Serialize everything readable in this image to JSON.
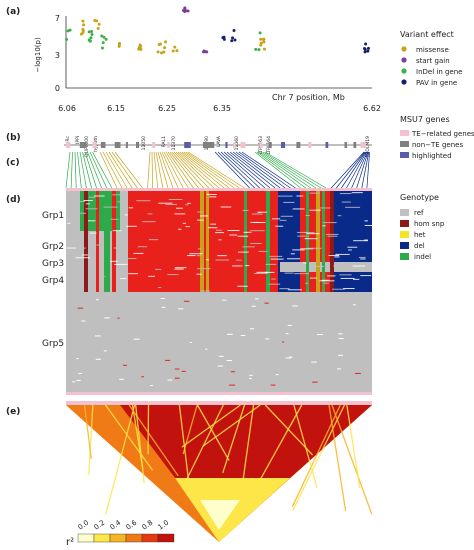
{
  "panels": {
    "a": "(a)",
    "b": "(b)",
    "c": "(c)",
    "d": "(d)",
    "e": "(e)"
  },
  "scatter": {
    "ylabel": "−log10(p)",
    "xlabel": "Chr 7 position, Mb",
    "y_ticks": [
      "0",
      "3",
      "7"
    ],
    "x_ticks": [
      "6.06",
      "6.15",
      "6.25",
      "6.35",
      "6.62"
    ]
  },
  "variant_legend": {
    "title": "Variant effect",
    "items": [
      {
        "label": "missense",
        "color": "#c8a21a"
      },
      {
        "label": "start gain",
        "color": "#7b3f98"
      },
      {
        "label": "InDel in gene",
        "color": "#3db048"
      },
      {
        "label": "PAV in gene",
        "color": "#15236b"
      }
    ]
  },
  "gene_legend": {
    "title": "MSU7 genes",
    "items": [
      {
        "label": "TE−related genes",
        "color": "#f4c2cf"
      },
      {
        "label": "non−TE genes",
        "color": "#808080"
      },
      {
        "label": "highlighted",
        "color": "#5b5ea6"
      }
    ]
  },
  "gene_names": [
    "Rc",
    "IPPi",
    "DUF6000",
    "hypoth",
    "11050",
    "RAL1",
    "11370",
    "11490",
    "LAVA",
    "11560",
    "LTPL163",
    "LTPL164",
    "PROLM19"
  ],
  "genotype_legend": {
    "title": "Genotype",
    "items": [
      {
        "label": "ref",
        "color": "#c0c0c0"
      },
      {
        "label": "hom snp",
        "color": "#8b1a1a"
      },
      {
        "label": "het",
        "color": "#f5e623"
      },
      {
        "label": "del",
        "color": "#0a2a8a"
      },
      {
        "label": "indel",
        "color": "#2eaa4a"
      }
    ]
  },
  "groups": [
    "Grp1",
    "Grp2",
    "Grp3",
    "Grp4",
    "Grp5"
  ],
  "ld": {
    "legend_label": "r²",
    "ticks": [
      "0.0",
      "0.2",
      "0.4",
      "0.6",
      "0.8",
      "1.0"
    ],
    "colors": [
      "#ffffcc",
      "#fde647",
      "#f6b524",
      "#ef7a16",
      "#e43a12",
      "#c2120e"
    ]
  },
  "colors": {
    "red": "#e8211c",
    "grey": "#bfbfbf",
    "navy": "#0a2a8a",
    "green": "#2eaa4a",
    "gold": "#c8a21a",
    "pinkstrip": "#f4c2cf"
  }
}
